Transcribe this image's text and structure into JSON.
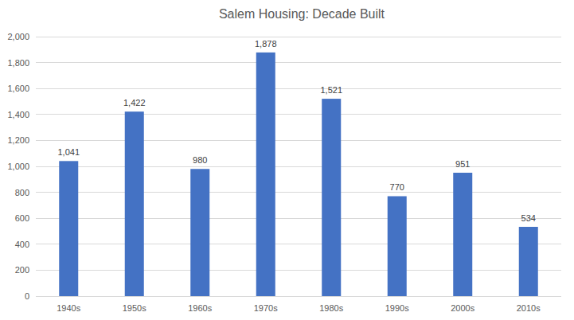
{
  "chart_data": {
    "type": "bar",
    "title": "Salem Housing: Decade Built",
    "categories": [
      "1940s",
      "1950s",
      "1960s",
      "1970s",
      "1980s",
      "1990s",
      "2000s",
      "2010s"
    ],
    "values": [
      1041,
      1422,
      980,
      1878,
      1521,
      770,
      951,
      534
    ],
    "value_labels": [
      "1,041",
      "1,422",
      "980",
      "1,878",
      "1,521",
      "770",
      "951",
      "534"
    ],
    "color": "#4472c4",
    "ylim": [
      0,
      2000
    ],
    "yticks": [
      0,
      200,
      400,
      600,
      800,
      {
        "value": 1000,
        "label": "1,000"
      },
      {
        "value": 1200,
        "label": "1,200"
      },
      {
        "value": 1400,
        "label": "1,400"
      },
      {
        "value": 1600,
        "label": "1,600"
      },
      {
        "value": 1800,
        "label": "1,800"
      },
      {
        "value": 2000,
        "label": "2,000"
      }
    ],
    "grid": true,
    "data_labels": true
  }
}
